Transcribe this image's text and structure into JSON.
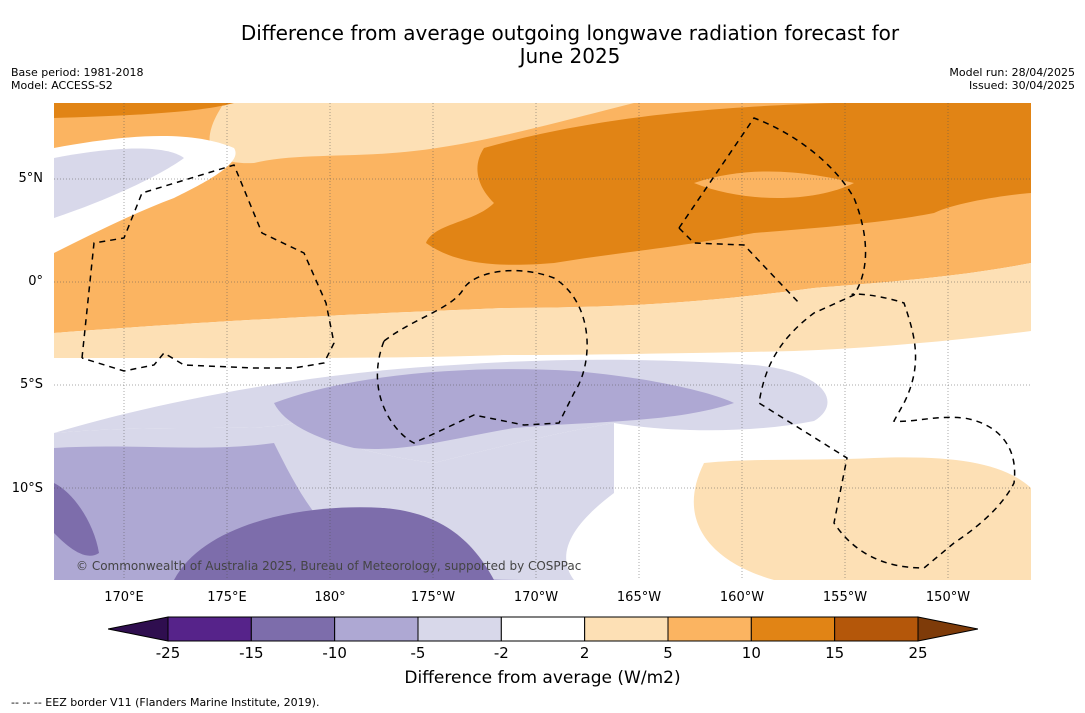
{
  "title_line1": "Difference from average outgoing longwave radiation forecast for",
  "title_line2": "June 2025",
  "meta_left": {
    "line1": "Base period: 1981-2018",
    "line2": "Model: ACCESS-S2"
  },
  "meta_right": {
    "line1": "Model run: 28/04/2025",
    "line2": "Issued: 30/04/2025"
  },
  "lat_labels": [
    "5°N",
    "0°",
    "5°S",
    "10°S"
  ],
  "lon_labels": [
    "170°E",
    "175°E",
    "180°",
    "175°W",
    "170°W",
    "165°W",
    "160°W",
    "155°W",
    "150°W"
  ],
  "colorbar": {
    "labels": [
      "-25",
      "-15",
      "-10",
      "-5",
      "-2",
      "2",
      "5",
      "10",
      "15",
      "25"
    ],
    "colors": [
      "#56238a",
      "#7d6dab",
      "#aea8d3",
      "#d8d8ea",
      "#ffffff",
      "#fde0b5",
      "#fbb461",
      "#e18415",
      "#b4570a",
      "#7e3b09"
    ],
    "title": "Difference from average (W/m2)"
  },
  "copyright": "© Commonwealth of Australia 2025, Bureau of Meteorology, supported by COSPPac",
  "footnote": "--  --  -- EEZ border V11 (Flanders Marine Institute, 2019)."
}
